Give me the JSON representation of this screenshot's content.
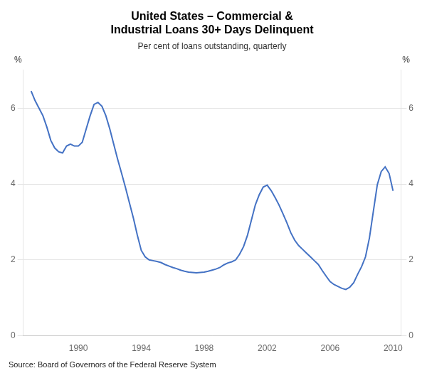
{
  "chart_data": {
    "type": "line",
    "title": [
      "United States – Commercial &",
      "Industrial Loans 30+ Days Delinquent"
    ],
    "subtitle": "Per cent of loans outstanding, quarterly",
    "annotations": [
      "Source: Board of Governors of the Federal Reserve System"
    ],
    "ylabel": "%",
    "y2label": "%",
    "color": "#4472C4",
    "grid": "y",
    "xlim": [
      1986.5,
      2010.5
    ],
    "xticks": [
      1990,
      1994,
      1998,
      2002,
      2006,
      2010
    ],
    "ylim": [
      0,
      7
    ],
    "yticks": [
      0,
      2,
      4,
      6
    ],
    "y2lim": [
      0,
      7
    ],
    "y2ticks": [
      0,
      2,
      4,
      6
    ],
    "x": [
      1987.0,
      1987.25,
      1987.5,
      1987.75,
      1988.0,
      1988.25,
      1988.5,
      1988.75,
      1989.0,
      1989.25,
      1989.5,
      1989.75,
      1990.0,
      1990.25,
      1990.5,
      1990.75,
      1991.0,
      1991.25,
      1991.5,
      1991.75,
      1992.0,
      1992.25,
      1992.5,
      1992.75,
      1993.0,
      1993.25,
      1993.5,
      1993.75,
      1994.0,
      1994.25,
      1994.5,
      1994.75,
      1995.0,
      1995.25,
      1995.5,
      1995.75,
      1996.0,
      1996.25,
      1996.5,
      1996.75,
      1997.0,
      1997.25,
      1997.5,
      1997.75,
      1998.0,
      1998.25,
      1998.5,
      1998.75,
      1999.0,
      1999.25,
      1999.5,
      1999.75,
      2000.0,
      2000.25,
      2000.5,
      2000.75,
      2001.0,
      2001.25,
      2001.5,
      2001.75,
      2002.0,
      2002.25,
      2002.5,
      2002.75,
      2003.0,
      2003.25,
      2003.5,
      2003.75,
      2004.0,
      2004.25,
      2004.5,
      2004.75,
      2005.0,
      2005.25,
      2005.5,
      2005.75,
      2006.0,
      2006.25,
      2006.5,
      2006.75,
      2007.0,
      2007.25,
      2007.5,
      2007.75,
      2008.0,
      2008.25,
      2008.5,
      2008.75,
      2009.0,
      2009.25,
      2009.5,
      2009.75,
      2010.0
    ],
    "values": [
      6.45,
      6.2,
      6.0,
      5.8,
      5.5,
      5.15,
      4.95,
      4.85,
      4.82,
      5.0,
      5.05,
      5.0,
      5.0,
      5.1,
      5.45,
      5.8,
      6.1,
      6.15,
      6.05,
      5.8,
      5.45,
      5.05,
      4.65,
      4.28,
      3.9,
      3.5,
      3.1,
      2.65,
      2.25,
      2.08,
      2.0,
      1.98,
      1.96,
      1.93,
      1.88,
      1.84,
      1.8,
      1.77,
      1.73,
      1.7,
      1.68,
      1.67,
      1.66,
      1.67,
      1.68,
      1.7,
      1.73,
      1.76,
      1.8,
      1.87,
      1.92,
      1.95,
      2.0,
      2.15,
      2.35,
      2.65,
      3.05,
      3.45,
      3.72,
      3.92,
      3.97,
      3.83,
      3.65,
      3.45,
      3.22,
      2.98,
      2.72,
      2.52,
      2.38,
      2.28,
      2.18,
      2.08,
      1.98,
      1.88,
      1.72,
      1.57,
      1.43,
      1.35,
      1.3,
      1.25,
      1.22,
      1.28,
      1.4,
      1.62,
      1.82,
      2.08,
      2.58,
      3.28,
      3.98,
      4.33,
      4.45,
      4.28,
      3.82
    ]
  }
}
